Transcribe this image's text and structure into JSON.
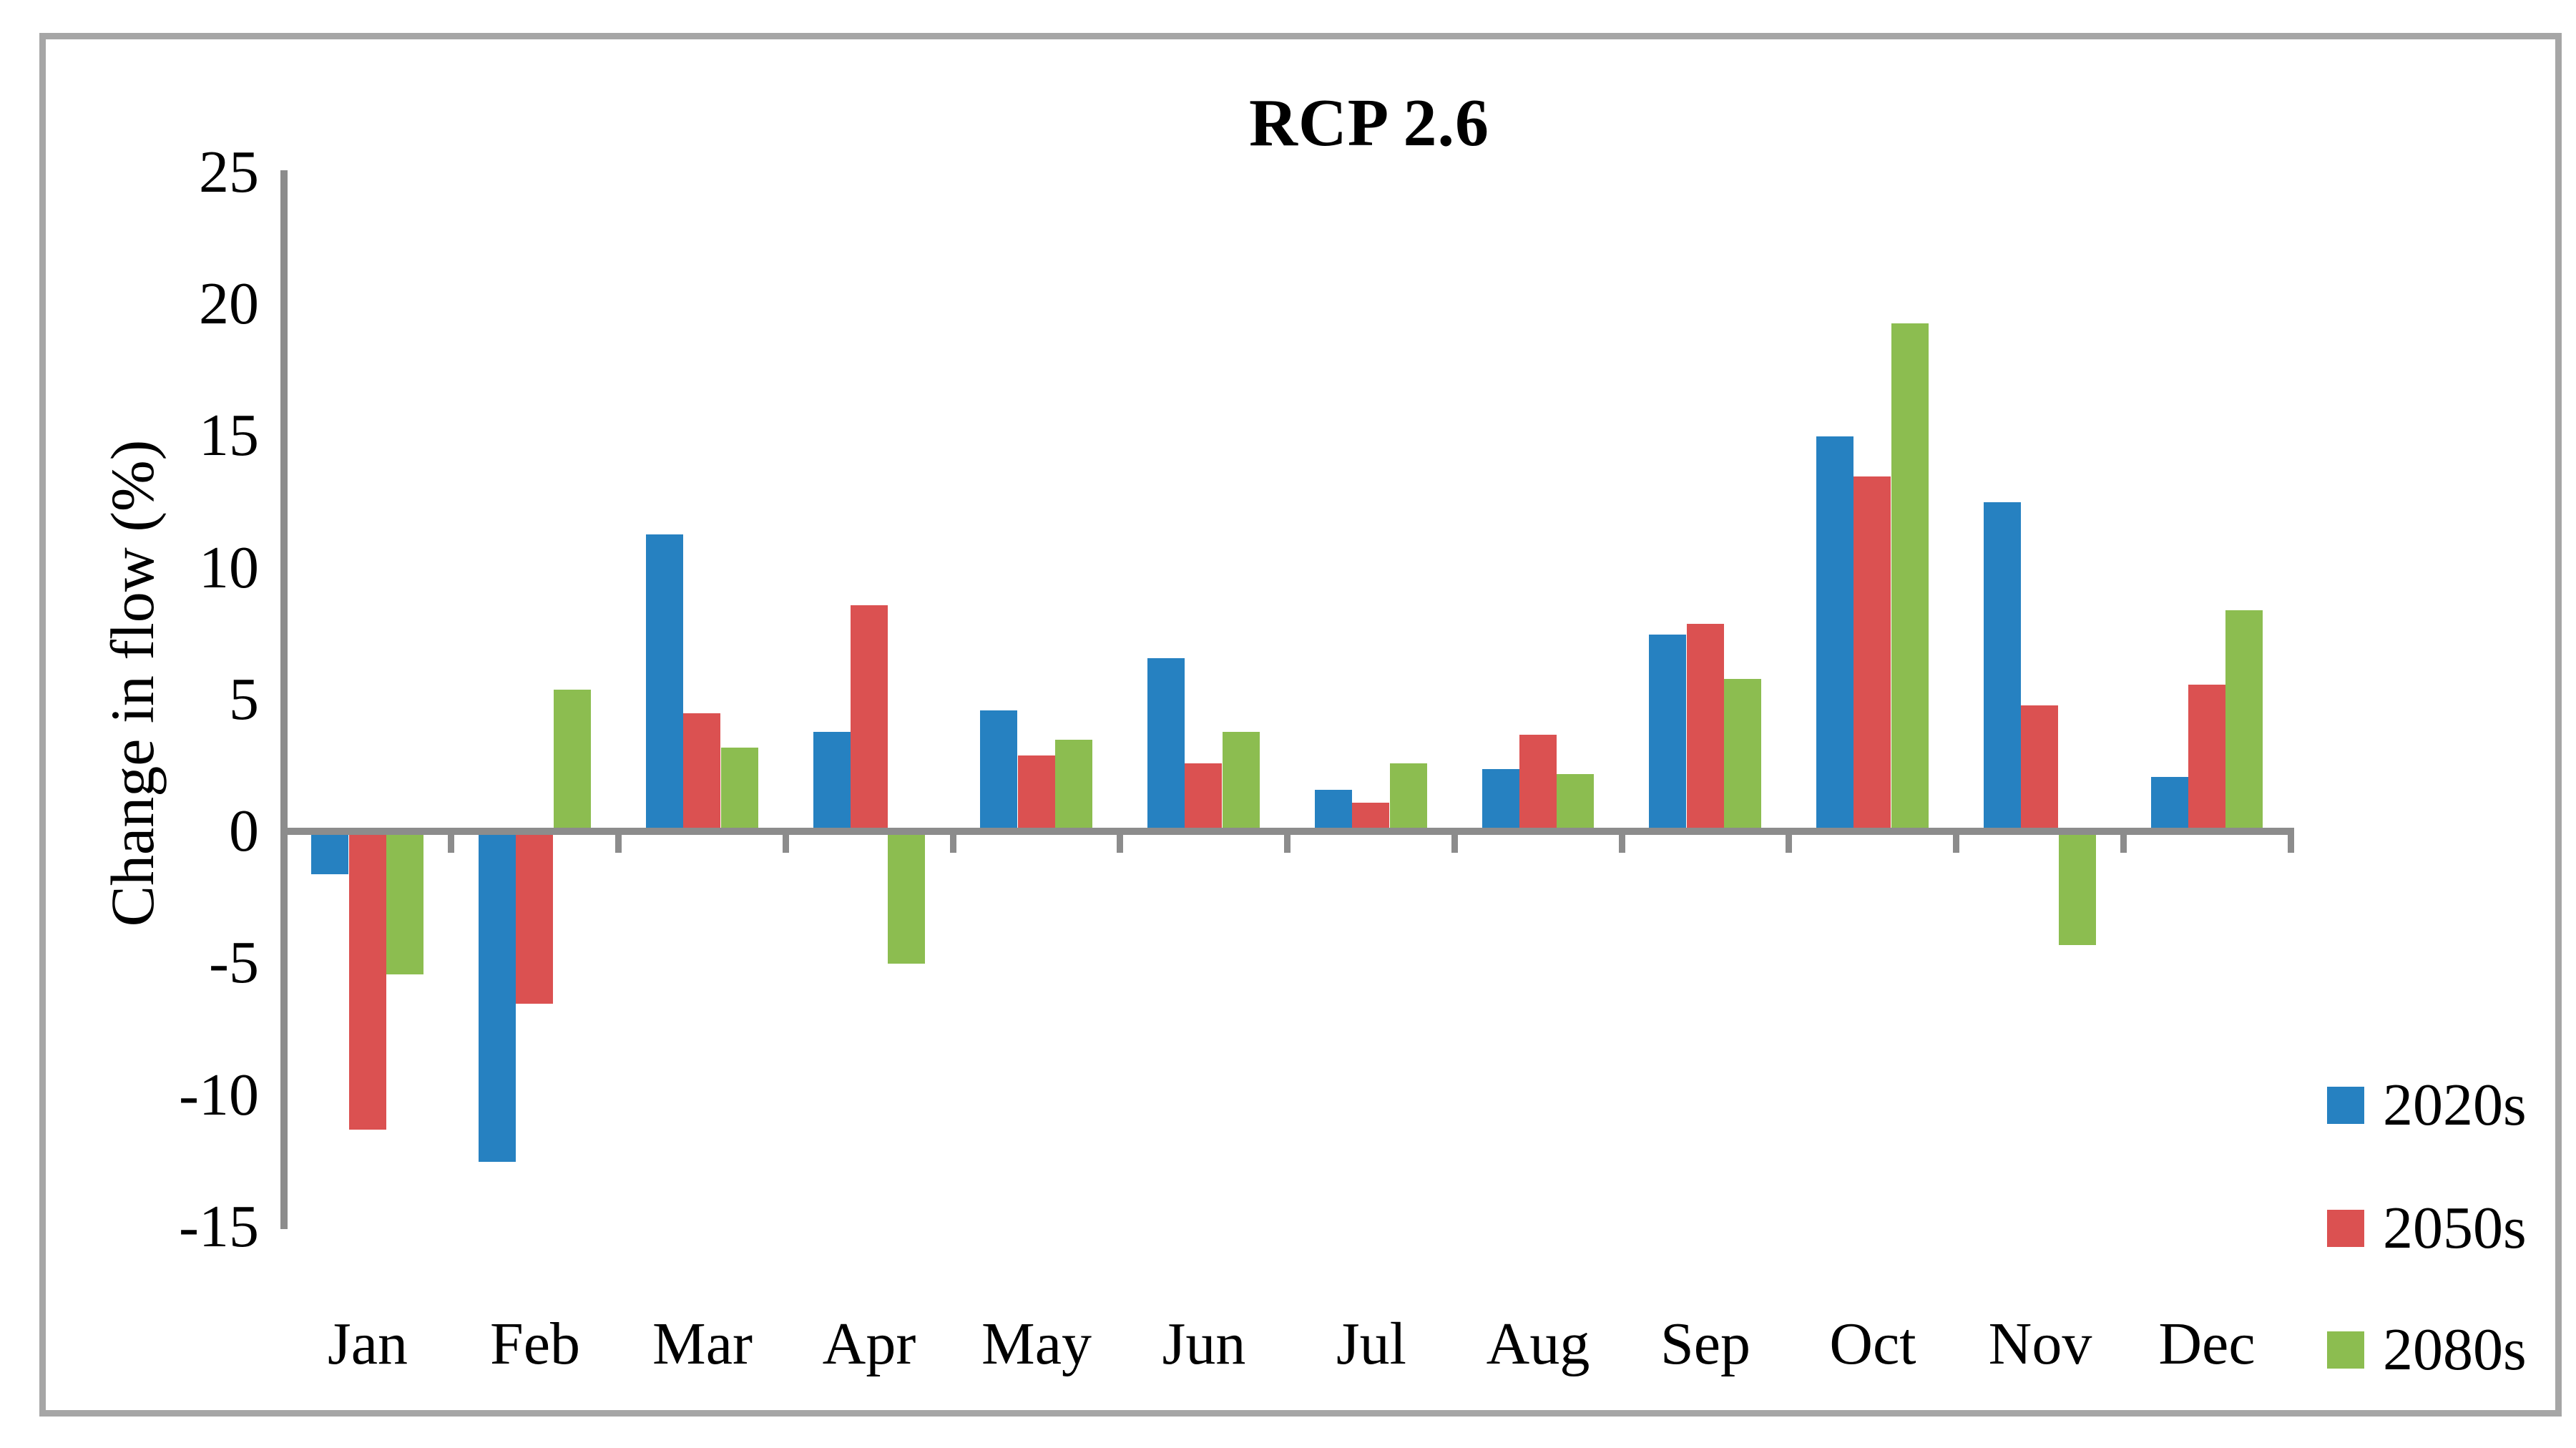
{
  "title": "RCP 2.6",
  "y_axis": {
    "label": "Change in flow (%)"
  },
  "legend": {
    "entries": [
      {
        "label": "2020s",
        "color": "#2681c1"
      },
      {
        "label": "2050s",
        "color": "#db5151"
      },
      {
        "label": "2080s",
        "color": "#8cbd50"
      }
    ]
  },
  "chart_data": {
    "type": "bar",
    "title": "RCP 2.6",
    "ylabel": "Change in flow (%)",
    "ylim": [
      -15,
      25
    ],
    "yticks": [
      25,
      20,
      15,
      10,
      5,
      0,
      -5,
      -10,
      -15
    ],
    "grid": false,
    "legend_position": "right-bottom",
    "categories": [
      "Jan",
      "Feb",
      "Mar",
      "Apr",
      "May",
      "Jun",
      "Jul",
      "Aug",
      "Sep",
      "Oct",
      "Nov",
      "Dec"
    ],
    "series": [
      {
        "name": "2020s",
        "color": "#2681c1",
        "values": [
          -1.6,
          -12.5,
          11.3,
          3.8,
          4.6,
          6.6,
          1.6,
          2.4,
          7.5,
          15.0,
          12.5,
          2.1
        ]
      },
      {
        "name": "2050s",
        "color": "#db5151",
        "values": [
          -11.3,
          -6.5,
          4.5,
          8.6,
          2.9,
          2.6,
          1.1,
          3.7,
          7.9,
          13.5,
          4.8,
          5.6
        ]
      },
      {
        "name": "2080s",
        "color": "#8cbd50",
        "values": [
          -5.4,
          5.4,
          3.2,
          -5.0,
          3.5,
          3.8,
          2.6,
          2.2,
          5.8,
          19.3,
          -4.3,
          8.4
        ]
      }
    ],
    "axis_color": "#8c8c8c",
    "frame_color": "#a6a6a6"
  }
}
